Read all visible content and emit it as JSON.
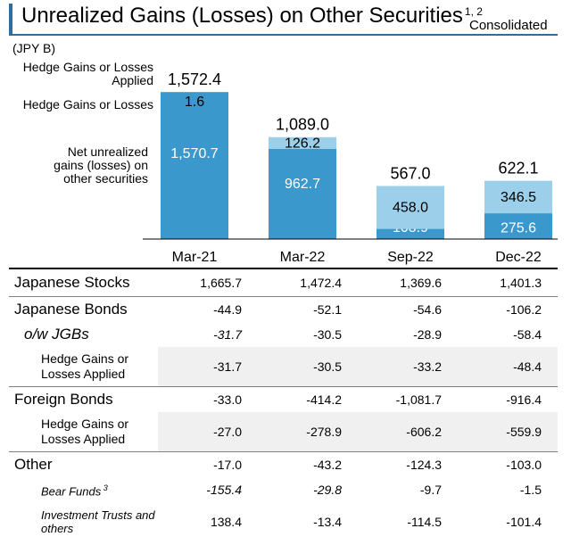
{
  "header": {
    "title": "Unrealized Gains (Losses) on Other Securities",
    "title_sup": "1, 2",
    "scope": "Consolidated",
    "unit": "(JPY B)"
  },
  "legend_labels": {
    "total": "Hedge Gains or Losses Applied",
    "hedge": "Hedge Gains or Losses",
    "net": "Net unrealized gains (losses) on other securities"
  },
  "chart_data": {
    "type": "bar",
    "stacked": true,
    "categories": [
      "Mar-21",
      "Mar-22",
      "Sep-22",
      "Dec-22"
    ],
    "series": [
      {
        "name": "Net unrealized gains (losses) on other securities",
        "values": [
          1570.7,
          962.7,
          108.9,
          275.6
        ],
        "labels": [
          "1,570.7",
          "962.7",
          "108.9",
          "275.6"
        ],
        "color": "#3b98cd"
      },
      {
        "name": "Hedge Gains or Losses",
        "values": [
          1.6,
          126.2,
          458.0,
          346.5
        ],
        "labels": [
          "1.6",
          "126.2",
          "458.0",
          "346.5"
        ],
        "color": "#9cd0ea"
      }
    ],
    "totals": [
      1572.4,
      1089.0,
      567.0,
      622.1
    ],
    "total_labels": [
      "1,572.4",
      "1,089.0",
      "567.0",
      "622.1"
    ],
    "ylim": [
      0,
      1700
    ],
    "grid": false,
    "legend": "left"
  },
  "table": {
    "columns": [
      "Mar-21",
      "Mar-22",
      "Sep-22",
      "Dec-22"
    ],
    "rows": [
      {
        "label": "Japanese Stocks",
        "values": [
          "1,665.7",
          "1,472.4",
          "1,369.6",
          "1,401.3"
        ]
      },
      {
        "label": "Japanese Bonds",
        "values": [
          "-44.9",
          "-52.1",
          "-54.6",
          "-106.2"
        ]
      },
      {
        "label": "o/w JGBs",
        "values": [
          "-31.7",
          "-30.5",
          "-28.9",
          "-58.4"
        ]
      },
      {
        "label": "Hedge Gains or Losses Applied",
        "values": [
          "-31.7",
          "-30.5",
          "-33.2",
          "-48.4"
        ]
      },
      {
        "label": "Foreign Bonds",
        "values": [
          "-33.0",
          "-414.2",
          "-1,081.7",
          "-916.4"
        ]
      },
      {
        "label": "Hedge Gains or Losses Applied",
        "values": [
          "-27.0",
          "-278.9",
          "-606.2",
          "-559.9"
        ]
      },
      {
        "label": "Other",
        "values": [
          "-17.0",
          "-43.2",
          "-124.3",
          "-103.0"
        ]
      },
      {
        "label": "Bear Funds",
        "label_sup": "3",
        "values": [
          "-155.4",
          "-29.8",
          "-9.7",
          "-1.5"
        ]
      },
      {
        "label": "Investment Trusts and others",
        "values": [
          "138.4",
          "-13.4",
          "-114.5",
          "-101.4"
        ]
      }
    ]
  }
}
